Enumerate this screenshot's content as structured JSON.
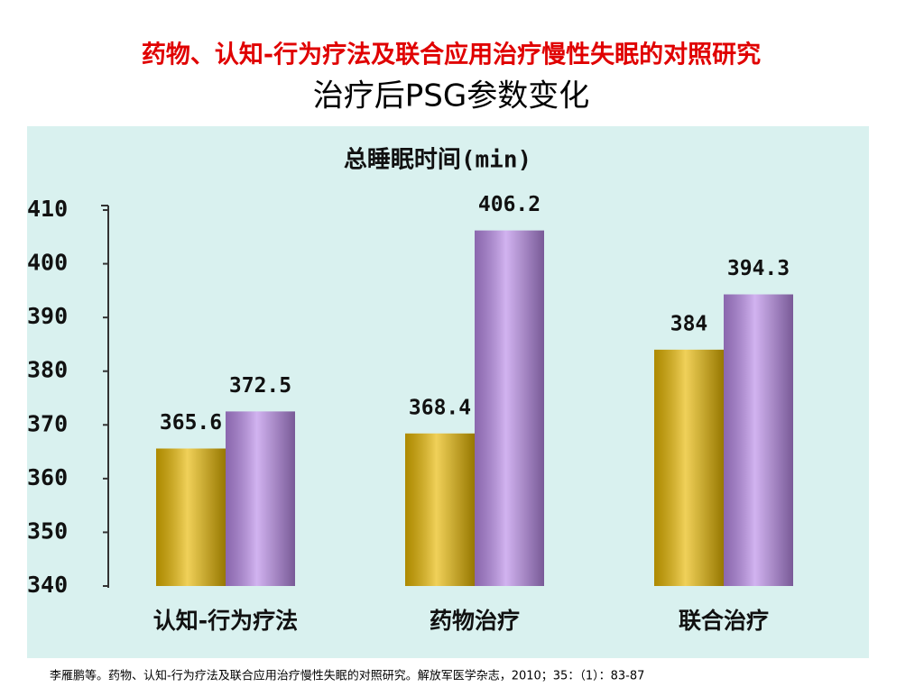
{
  "title": "药物、认知-行为疗法及联合应用治疗慢性失眠的对照研究",
  "subtitle": "治疗后PSG参数变化",
  "citation": "李雁鹏等。药物、认知-行为疗法及联合应用治疗慢性失眠的对照研究。解放军医学杂志，2010；35：（1）：83-87",
  "chart_data": {
    "type": "bar",
    "title": "总睡眠时间(min)",
    "categories": [
      "认知-行为疗法",
      "药物治疗",
      "联合治疗"
    ],
    "series": [
      {
        "color": "#e8b800",
        "values": [
          365.6,
          368.4,
          384
        ]
      },
      {
        "color": "#b98ae8",
        "values": [
          372.5,
          406.2,
          394.3
        ]
      }
    ],
    "ylim": [
      340,
      410
    ],
    "yticks": [
      340,
      350,
      360,
      370,
      380,
      390,
      400,
      410
    ]
  }
}
